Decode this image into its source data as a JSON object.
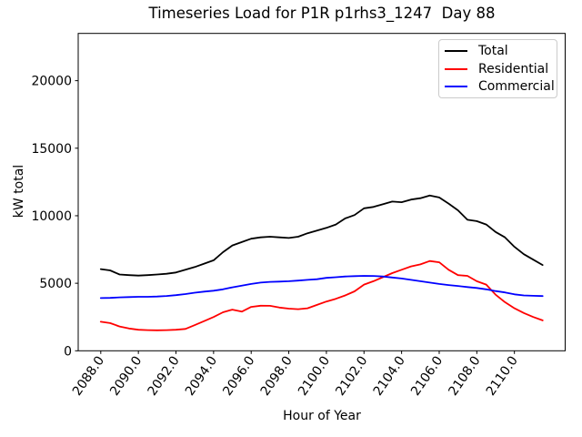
{
  "title": "Timeseries Load for P1R p1rhs3_1247  Day 88",
  "chart_data": {
    "type": "line",
    "title": "Timeseries Load for P1R p1rhs3_1247  Day 88",
    "xlabel": "Hour of Year",
    "ylabel": "kW total",
    "xlim": [
      2086.8,
      2112.7
    ],
    "ylim": [
      0,
      23500
    ],
    "grid": false,
    "legend_position": "upper right",
    "xticks": [
      2088,
      2090,
      2092,
      2094,
      2096,
      2098,
      2100,
      2102,
      2104,
      2106,
      2108,
      2110
    ],
    "xtick_labels": [
      "2088.0",
      "2090.0",
      "2092.0",
      "2094.0",
      "2096.0",
      "2098.0",
      "2100.0",
      "2102.0",
      "2104.0",
      "2106.0",
      "2108.0",
      "2110.0"
    ],
    "yticks": [
      0,
      5000,
      10000,
      15000,
      20000
    ],
    "ytick_labels": [
      "0",
      "5000",
      "10000",
      "15000",
      "20000"
    ],
    "x": [
      2088.0,
      2088.5,
      2089.0,
      2089.5,
      2090.0,
      2090.5,
      2091.0,
      2091.5,
      2092.0,
      2092.5,
      2093.0,
      2093.5,
      2094.0,
      2094.5,
      2095.0,
      2095.5,
      2096.0,
      2096.5,
      2097.0,
      2097.5,
      2098.0,
      2098.5,
      2099.0,
      2099.5,
      2100.0,
      2100.5,
      2101.0,
      2101.5,
      2102.0,
      2102.5,
      2103.0,
      2103.5,
      2104.0,
      2104.5,
      2105.0,
      2105.5,
      2106.0,
      2106.5,
      2107.0,
      2107.5,
      2108.0,
      2108.5,
      2109.0,
      2109.5,
      2110.0,
      2110.5,
      2111.0,
      2111.5
    ],
    "series": [
      {
        "name": "Total",
        "color": "#000000",
        "values": [
          6050,
          5950,
          5650,
          5600,
          5570,
          5600,
          5650,
          5700,
          5800,
          6000,
          6200,
          6450,
          6700,
          7300,
          7800,
          8050,
          8300,
          8400,
          8450,
          8400,
          8350,
          8450,
          8700,
          8900,
          9100,
          9350,
          9800,
          10050,
          10550,
          10650,
          10850,
          11050,
          11000,
          11200,
          11300,
          11500,
          11350,
          10900,
          10400,
          9700,
          9600,
          9350,
          8800,
          8400,
          7700,
          7150,
          6750,
          6350
        ]
      },
      {
        "name": "Residential",
        "color": "#ff0000",
        "values": [
          2150,
          2050,
          1800,
          1650,
          1560,
          1530,
          1520,
          1530,
          1560,
          1620,
          1900,
          2200,
          2500,
          2850,
          3050,
          2900,
          3250,
          3340,
          3330,
          3200,
          3120,
          3080,
          3150,
          3400,
          3650,
          3850,
          4100,
          4400,
          4900,
          5150,
          5450,
          5750,
          6000,
          6250,
          6400,
          6650,
          6550,
          6000,
          5600,
          5550,
          5150,
          4900,
          4150,
          3600,
          3150,
          2800,
          2500,
          2250
        ]
      },
      {
        "name": "Commercial",
        "color": "#0000ff",
        "values": [
          3900,
          3920,
          3960,
          3980,
          4000,
          4000,
          4020,
          4060,
          4120,
          4200,
          4300,
          4380,
          4450,
          4550,
          4700,
          4820,
          4950,
          5050,
          5100,
          5120,
          5150,
          5200,
          5250,
          5300,
          5400,
          5450,
          5500,
          5530,
          5550,
          5540,
          5500,
          5430,
          5350,
          5250,
          5150,
          5050,
          4950,
          4870,
          4800,
          4720,
          4650,
          4550,
          4420,
          4320,
          4180,
          4100,
          4070,
          4050
        ]
      }
    ]
  }
}
